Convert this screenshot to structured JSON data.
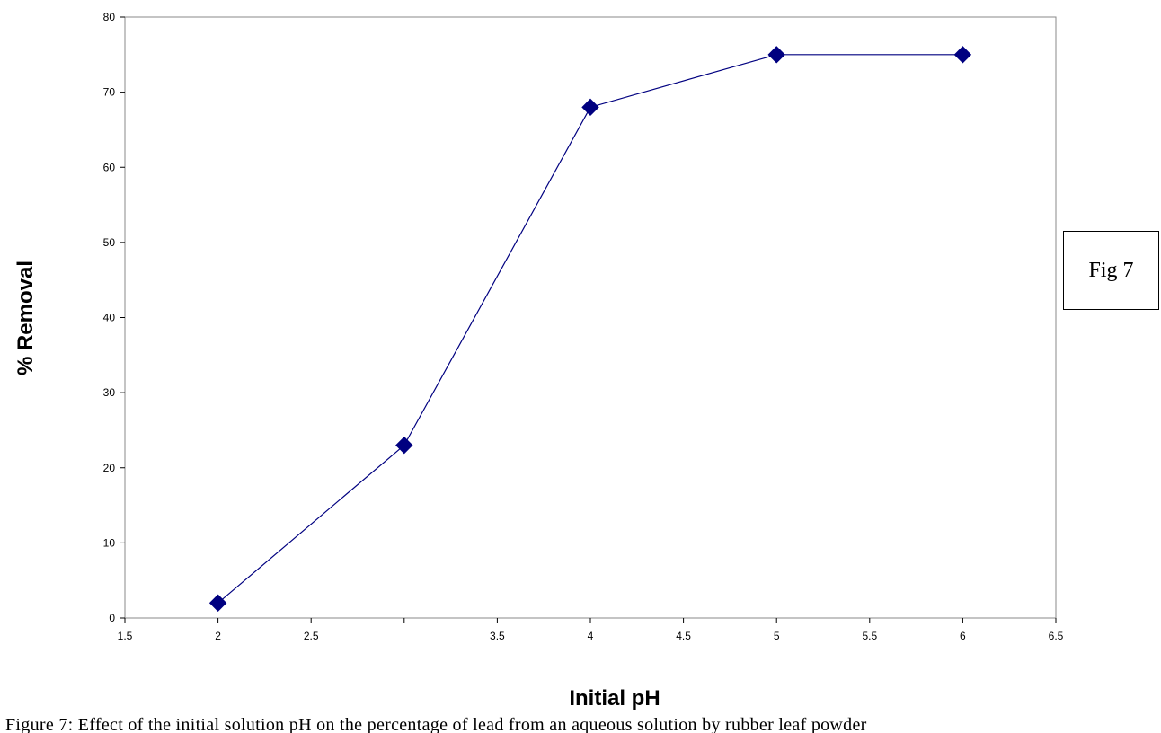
{
  "chart_data": {
    "type": "line",
    "title": "",
    "xlabel": "Initial pH",
    "ylabel": "% Removal",
    "xlim": [
      1.5,
      6.5
    ],
    "ylim": [
      0,
      80
    ],
    "xtick_labels": [
      "1.5",
      "2",
      "2.5",
      "3.5",
      "4",
      "4.5",
      "5",
      "5.5",
      "6",
      "6.5"
    ],
    "xtick_values": [
      1.5,
      2,
      2.5,
      3.5,
      4,
      4.5,
      5,
      5.5,
      6,
      6.5
    ],
    "xtick_marks": [
      1.5,
      2,
      2.5,
      3,
      3.5,
      4,
      4.5,
      5,
      5.5,
      6,
      6.5
    ],
    "ytick_labels": [
      "0",
      "10",
      "20",
      "30",
      "40",
      "50",
      "60",
      "70",
      "80"
    ],
    "ytick_values": [
      0,
      10,
      20,
      30,
      40,
      50,
      60,
      70,
      80
    ],
    "grid": false,
    "series": [
      {
        "x": [
          2,
          3,
          4,
          5,
          6
        ],
        "y": [
          2,
          23,
          68,
          75,
          75
        ],
        "color": "#000080",
        "marker": "diamond"
      }
    ]
  },
  "annotation": {
    "label": "Fig 7"
  },
  "caption": {
    "text": "Figure 7: Effect of the initial solution pH on the percentage of lead from an aqueous solution by rubber leaf powder"
  }
}
